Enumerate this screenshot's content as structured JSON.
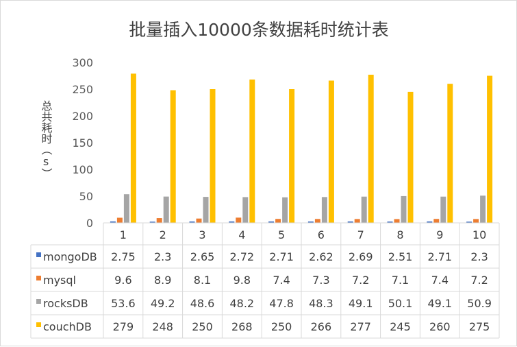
{
  "chart_data": {
    "type": "bar",
    "title": "批量插入10000条数据耗时统计表",
    "ylabel": "总共耗时（s）",
    "xlabel": "",
    "categories": [
      "1",
      "2",
      "3",
      "4",
      "5",
      "6",
      "7",
      "8",
      "9",
      "10"
    ],
    "ylim": [
      0,
      300
    ],
    "yticks": [
      0,
      50,
      100,
      150,
      200,
      250,
      300
    ],
    "grid": false,
    "legend": "data-table",
    "series": [
      {
        "name": "mongoDB",
        "color": "#4472c4",
        "values": [
          2.75,
          2.3,
          2.65,
          2.72,
          2.71,
          2.62,
          2.69,
          2.51,
          2.71,
          2.3
        ]
      },
      {
        "name": "mysql",
        "color": "#ed7d31",
        "values": [
          9.6,
          8.9,
          8.1,
          9.8,
          7.4,
          7.3,
          7.2,
          7.1,
          7.4,
          7.2
        ]
      },
      {
        "name": "rocksDB",
        "color": "#a5a5a5",
        "values": [
          53.6,
          49.2,
          48.6,
          48.2,
          47.8,
          48.3,
          49.1,
          50.1,
          49.1,
          50.9
        ]
      },
      {
        "name": "couchDB",
        "color": "#ffc000",
        "values": [
          279,
          248,
          250,
          268,
          250,
          266,
          277,
          245,
          260,
          275
        ]
      }
    ]
  }
}
